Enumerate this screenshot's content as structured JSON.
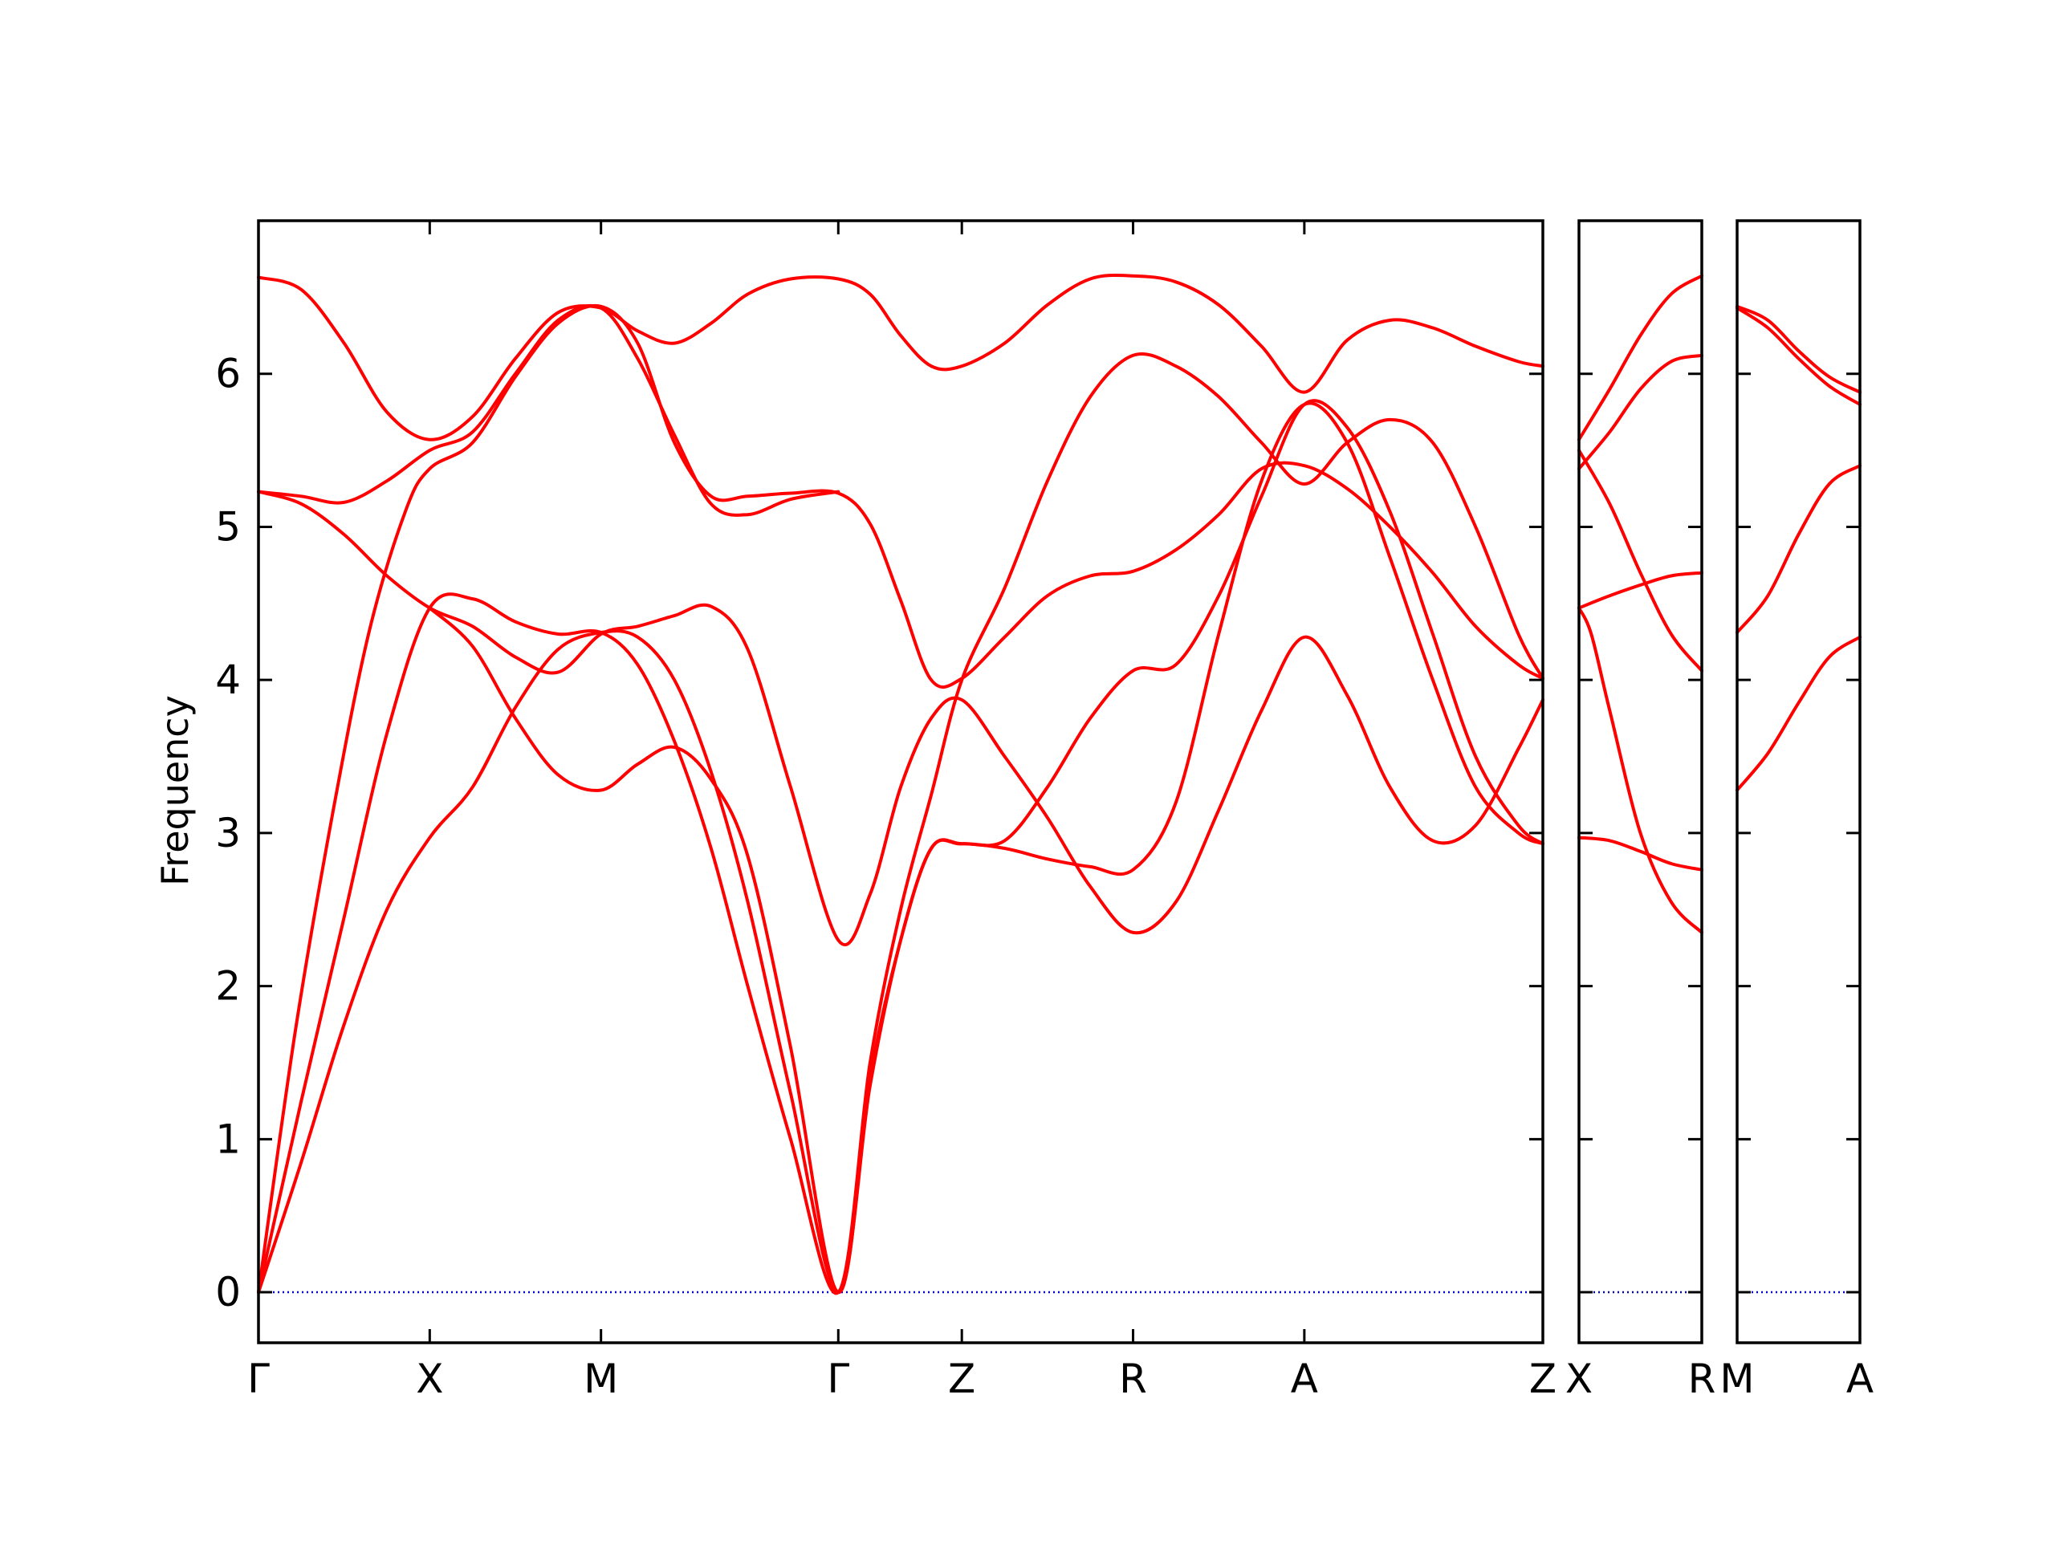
{
  "chart_data": {
    "type": "line",
    "title": "",
    "ylabel": "Frequency",
    "ylim": [
      -0.33,
      7.0
    ],
    "yticks": [
      0,
      1,
      2,
      3,
      4,
      5,
      6
    ],
    "grid": false,
    "colors": {
      "bands": "#ff0000",
      "zero_line": "#0000cc",
      "axes": "#000000"
    },
    "panels": [
      {
        "xlim": [
          0,
          10.5
        ],
        "ticks": [
          {
            "x": 0,
            "label": "Γ"
          },
          {
            "x": 1.4,
            "label": "X"
          },
          {
            "x": 2.8,
            "label": "M"
          },
          {
            "x": 4.74,
            "label": "Γ"
          },
          {
            "x": 5.75,
            "label": "Z"
          },
          {
            "x": 7.15,
            "label": "R"
          },
          {
            "x": 8.55,
            "label": "A"
          },
          {
            "x": 10.5,
            "label": "Z"
          }
        ],
        "series": [
          {
            "x": [
              0,
              0.35,
              0.7,
              1.05,
              1.4,
              1.75,
              2.1,
              2.45,
              2.8,
              3.1,
              3.4,
              3.7,
              4.0,
              4.35,
              4.74,
              5.0,
              5.25,
              5.5,
              5.75,
              6.1,
              6.45,
              6.8,
              7.15,
              7.5,
              7.85,
              8.2,
              8.55,
              8.9,
              9.25,
              9.6,
              9.95,
              10.3,
              10.5
            ],
            "y": [
              6.63,
              6.55,
              6.2,
              5.75,
              5.57,
              5.72,
              6.1,
              6.4,
              6.43,
              6.28,
              6.2,
              6.33,
              6.52,
              6.62,
              6.62,
              6.52,
              6.25,
              6.05,
              6.05,
              6.2,
              6.45,
              6.62,
              6.64,
              6.6,
              6.45,
              6.18,
              5.88,
              6.22,
              6.35,
              6.3,
              6.18,
              6.08,
              6.05
            ]
          },
          {
            "x": [
              0,
              0.35,
              0.7,
              1.05,
              1.4,
              1.75,
              2.1,
              2.45,
              2.8,
              3.1,
              3.4,
              3.7,
              4.0,
              4.35,
              4.74
            ],
            "y": [
              5.23,
              5.2,
              5.16,
              5.3,
              5.5,
              5.62,
              6.0,
              6.35,
              6.43,
              6.1,
              5.6,
              5.15,
              5.08,
              5.18,
              5.23
            ]
          },
          {
            "x": [
              0,
              0.35,
              0.7,
              1.05,
              1.4,
              1.75,
              2.1,
              2.45,
              2.8,
              3.1,
              3.4,
              3.7,
              4.0,
              4.35,
              4.74,
              5.0,
              5.25,
              5.5,
              5.75,
              6.1,
              6.45,
              6.8,
              7.15,
              7.5,
              7.85,
              8.2,
              8.55,
              8.9,
              9.25,
              9.6,
              9.95,
              10.3,
              10.5
            ],
            "y": [
              5.23,
              5.15,
              4.95,
              4.68,
              4.47,
              4.35,
              4.15,
              4.05,
              4.3,
              4.35,
              4.42,
              4.48,
              4.2,
              3.3,
              2.3,
              2.6,
              3.3,
              3.75,
              3.87,
              3.5,
              3.1,
              2.65,
              2.35,
              2.55,
              3.15,
              3.8,
              4.28,
              3.9,
              3.3,
              2.95,
              3.05,
              3.55,
              3.87
            ]
          },
          {
            "x": [
              0,
              0.3,
              0.6,
              0.9,
              1.2,
              1.4,
              1.75,
              2.1,
              2.45,
              2.8,
              3.1,
              3.4,
              3.7,
              4.0,
              4.35,
              4.74,
              5.0,
              5.25,
              5.5,
              5.75,
              6.1,
              6.45,
              6.8,
              7.15,
              7.5,
              7.85,
              8.2,
              8.55,
              8.9,
              9.25,
              9.6,
              9.95,
              10.3,
              10.5
            ],
            "y": [
              0,
              1.7,
              3.1,
              4.3,
              5.1,
              5.38,
              5.55,
              5.98,
              6.33,
              6.44,
              6.2,
              5.55,
              5.2,
              5.2,
              5.22,
              5.22,
              5.02,
              4.52,
              4.0,
              4.01,
              4.28,
              4.55,
              4.68,
              4.71,
              4.85,
              5.08,
              5.38,
              5.4,
              5.25,
              5.0,
              4.7,
              4.35,
              4.1,
              4.01
            ]
          },
          {
            "x": [
              0,
              0.35,
              0.7,
              1.05,
              1.4,
              1.75,
              2.1,
              2.45,
              2.8,
              3.1,
              3.4,
              3.7,
              4.0,
              4.35,
              4.74,
              5.0,
              5.25,
              5.5,
              5.75,
              6.1,
              6.45,
              6.8,
              7.15,
              7.5,
              7.85,
              8.2,
              8.55,
              8.9,
              9.25,
              9.6,
              9.95,
              10.3,
              10.5
            ],
            "y": [
              0,
              1.25,
              2.45,
              3.65,
              4.47,
              4.53,
              4.38,
              4.3,
              4.31,
              4.1,
              3.6,
              2.9,
              2.0,
              1.0,
              0,
              1.5,
              2.5,
              3.25,
              4.0,
              4.6,
              5.3,
              5.85,
              6.12,
              6.05,
              5.85,
              5.55,
              5.28,
              5.55,
              5.7,
              5.55,
              5.0,
              4.3,
              4.01
            ]
          },
          {
            "x": [
              0,
              0.35,
              0.7,
              1.05,
              1.4,
              1.75,
              2.1,
              2.45,
              2.8,
              3.1,
              3.4,
              3.7,
              4.0,
              4.35,
              4.74,
              5.0,
              5.25,
              5.5,
              5.75,
              6.1,
              6.45,
              6.8,
              7.15,
              7.5,
              7.85,
              8.2,
              8.55,
              8.9,
              9.25,
              9.6,
              9.95,
              10.3,
              10.5
            ],
            "y": [
              0,
              0.85,
              1.75,
              2.5,
              2.97,
              3.3,
              3.82,
              4.2,
              4.31,
              4.28,
              4.0,
              3.4,
              2.55,
              1.3,
              0,
              1.35,
              2.3,
              2.9,
              2.93,
              2.95,
              3.3,
              3.75,
              4.06,
              4.1,
              4.55,
              5.2,
              5.8,
              5.65,
              5.1,
              4.3,
              3.5,
              3.05,
              2.93
            ]
          },
          {
            "x": [
              1.4,
              1.75,
              2.1,
              2.45,
              2.8,
              3.1,
              3.4,
              3.7,
              4.0,
              4.35,
              4.74,
              5.0,
              5.25,
              5.5,
              5.75,
              6.1,
              6.45,
              6.8,
              7.15,
              7.5,
              7.85,
              8.2,
              8.55,
              8.9,
              9.25,
              9.6,
              9.95,
              10.3,
              10.5
            ],
            "y": [
              4.47,
              4.22,
              3.75,
              3.38,
              3.28,
              3.45,
              3.56,
              3.35,
              2.85,
              1.6,
              0,
              1.4,
              2.3,
              2.9,
              2.93,
              2.9,
              2.83,
              2.78,
              2.76,
              3.2,
              4.3,
              5.3,
              5.8,
              5.55,
              4.8,
              4.0,
              3.3,
              3.0,
              2.93
            ]
          }
        ]
      },
      {
        "xlim": [
          0,
          1
        ],
        "ticks": [
          {
            "x": 0,
            "label": "X"
          },
          {
            "x": 1,
            "label": "R"
          }
        ],
        "series": [
          {
            "x": [
              0,
              0.25,
              0.5,
              0.75,
              1
            ],
            "y": [
              5.57,
              5.9,
              6.25,
              6.52,
              6.64
            ]
          },
          {
            "x": [
              0,
              0.25,
              0.5,
              0.75,
              1
            ],
            "y": [
              5.38,
              5.62,
              5.9,
              6.08,
              6.12
            ]
          },
          {
            "x": [
              0,
              0.25,
              0.5,
              0.75,
              1
            ],
            "y": [
              5.5,
              5.15,
              4.7,
              4.3,
              4.06
            ]
          },
          {
            "x": [
              0,
              0.25,
              0.5,
              0.75,
              1
            ],
            "y": [
              4.47,
              4.55,
              4.62,
              4.68,
              4.7
            ]
          },
          {
            "x": [
              0,
              0.1,
              0.25,
              0.5,
              0.75,
              1
            ],
            "y": [
              4.47,
              4.3,
              3.8,
              3.0,
              2.55,
              2.35
            ]
          },
          {
            "x": [
              0,
              0.25,
              0.5,
              0.75,
              1
            ],
            "y": [
              2.97,
              2.95,
              2.88,
              2.8,
              2.76
            ]
          }
        ]
      },
      {
        "xlim": [
          0,
          1
        ],
        "ticks": [
          {
            "x": 0,
            "label": "M"
          },
          {
            "x": 1,
            "label": "A"
          }
        ],
        "series": [
          {
            "x": [
              0,
              0.25,
              0.5,
              0.75,
              1
            ],
            "y": [
              6.44,
              6.35,
              6.15,
              5.98,
              5.88
            ]
          },
          {
            "x": [
              0,
              0.25,
              0.5,
              0.75,
              1
            ],
            "y": [
              6.43,
              6.3,
              6.1,
              5.92,
              5.8
            ]
          },
          {
            "x": [
              0,
              0.25,
              0.5,
              0.75,
              1
            ],
            "y": [
              4.31,
              4.55,
              4.95,
              5.28,
              5.4
            ]
          },
          {
            "x": [
              0,
              0.25,
              0.5,
              0.75,
              1
            ],
            "y": [
              3.28,
              3.52,
              3.85,
              4.15,
              4.28
            ]
          }
        ]
      }
    ]
  }
}
